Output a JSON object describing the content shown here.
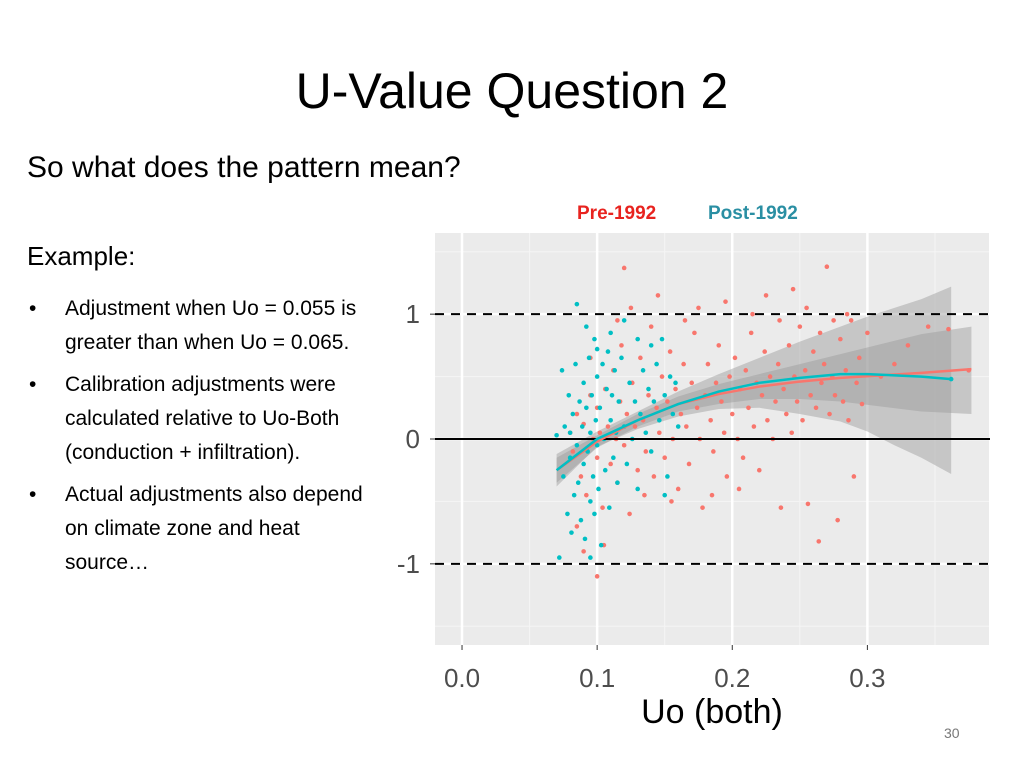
{
  "slide": {
    "title": "U-Value Question 2",
    "subtitle": "So what does the pattern mean?",
    "example_label": "Example:",
    "bullets": [
      "Adjustment when Uo = 0.055 is greater than when Uo = 0.065.",
      "Calibration adjustments were calculated relative to Uo-Both (conduction + infiltration).",
      "Actual adjustments also depend on climate zone and heat source…"
    ],
    "page_number": "30"
  },
  "chart_data": {
    "type": "scatter",
    "xlabel": "Uo (both)",
    "ylabel": "",
    "xlim": [
      -0.02,
      0.39
    ],
    "ylim": [
      -1.65,
      1.65
    ],
    "x_ticks": [
      0.0,
      0.1,
      0.2,
      0.3
    ],
    "x_tick_labels": [
      "0.0",
      "0.1",
      "0.2",
      "0.3"
    ],
    "y_ticks": [
      -1,
      0,
      1
    ],
    "y_tick_labels": [
      "-1",
      "0",
      "1"
    ],
    "grid": true,
    "reference_lines": [
      {
        "y": 1,
        "style": "dashed"
      },
      {
        "y": 0,
        "style": "solid"
      },
      {
        "y": -1,
        "style": "dashed"
      }
    ],
    "legend_position": "top",
    "series": [
      {
        "name": "Pre-1992",
        "color": "#F8766D",
        "points": [
          [
            0.08,
            0.05
          ],
          [
            0.082,
            -0.1
          ],
          [
            0.085,
            0.2
          ],
          [
            0.088,
            -0.3
          ],
          [
            0.09,
            0.12
          ],
          [
            0.092,
            -0.45
          ],
          [
            0.095,
            0.35
          ],
          [
            0.097,
            0.0
          ],
          [
            0.1,
            -0.15
          ],
          [
            0.1,
            0.25
          ],
          [
            0.102,
            0.05
          ],
          [
            0.104,
            -0.55
          ],
          [
            0.106,
            0.4
          ],
          [
            0.108,
            0.1
          ],
          [
            0.11,
            -0.2
          ],
          [
            0.112,
            0.55
          ],
          [
            0.114,
            0.0
          ],
          [
            0.115,
            -0.35
          ],
          [
            0.117,
            0.3
          ],
          [
            0.118,
            0.75
          ],
          [
            0.12,
            -0.05
          ],
          [
            0.122,
            0.2
          ],
          [
            0.124,
            -0.6
          ],
          [
            0.126,
            0.45
          ],
          [
            0.128,
            0.1
          ],
          [
            0.13,
            -0.25
          ],
          [
            0.132,
            0.65
          ],
          [
            0.134,
            0.15
          ],
          [
            0.136,
            -0.1
          ],
          [
            0.138,
            0.35
          ],
          [
            0.14,
            0.9
          ],
          [
            0.142,
            -0.3
          ],
          [
            0.144,
            0.25
          ],
          [
            0.146,
            0.05
          ],
          [
            0.148,
            0.5
          ],
          [
            0.15,
            -0.15
          ],
          [
            0.152,
            0.3
          ],
          [
            0.154,
            0.7
          ],
          [
            0.156,
            0.0
          ],
          [
            0.158,
            0.4
          ],
          [
            0.16,
            -0.4
          ],
          [
            0.162,
            0.2
          ],
          [
            0.164,
            0.6
          ],
          [
            0.166,
            0.1
          ],
          [
            0.168,
            -0.2
          ],
          [
            0.17,
            0.45
          ],
          [
            0.172,
            0.85
          ],
          [
            0.174,
            0.25
          ],
          [
            0.176,
            0.0
          ],
          [
            0.178,
            -0.55
          ],
          [
            0.18,
            0.35
          ],
          [
            0.182,
            0.6
          ],
          [
            0.184,
            0.15
          ],
          [
            0.186,
            -0.1
          ],
          [
            0.188,
            0.45
          ],
          [
            0.19,
            0.75
          ],
          [
            0.192,
            0.3
          ],
          [
            0.194,
            0.05
          ],
          [
            0.196,
            -0.3
          ],
          [
            0.198,
            0.5
          ],
          [
            0.2,
            0.2
          ],
          [
            0.202,
            0.65
          ],
          [
            0.204,
            0.0
          ],
          [
            0.206,
            0.4
          ],
          [
            0.208,
            -0.15
          ],
          [
            0.21,
            0.55
          ],
          [
            0.212,
            0.25
          ],
          [
            0.214,
            0.85
          ],
          [
            0.216,
            0.1
          ],
          [
            0.218,
            0.45
          ],
          [
            0.22,
            -0.25
          ],
          [
            0.222,
            0.35
          ],
          [
            0.224,
            0.7
          ],
          [
            0.226,
            0.15
          ],
          [
            0.228,
            0.5
          ],
          [
            0.23,
            0.0
          ],
          [
            0.232,
            0.3
          ],
          [
            0.234,
            0.6
          ],
          [
            0.236,
            -0.55
          ],
          [
            0.238,
            0.4
          ],
          [
            0.24,
            0.2
          ],
          [
            0.242,
            0.75
          ],
          [
            0.244,
            0.05
          ],
          [
            0.246,
            0.5
          ],
          [
            0.248,
            0.3
          ],
          [
            0.25,
            0.9
          ],
          [
            0.252,
            0.15
          ],
          [
            0.254,
            0.55
          ],
          [
            0.256,
            -0.52
          ],
          [
            0.258,
            0.35
          ],
          [
            0.26,
            0.7
          ],
          [
            0.262,
            0.25
          ],
          [
            0.264,
            -0.82
          ],
          [
            0.266,
            0.45
          ],
          [
            0.268,
            0.6
          ],
          [
            0.27,
            1.38
          ],
          [
            0.272,
            0.2
          ],
          [
            0.274,
            0.5
          ],
          [
            0.276,
            0.35
          ],
          [
            0.278,
            -0.65
          ],
          [
            0.28,
            0.8
          ],
          [
            0.282,
            0.3
          ],
          [
            0.284,
            0.55
          ],
          [
            0.286,
            0.15
          ],
          [
            0.288,
            0.95
          ],
          [
            0.29,
            -0.3
          ],
          [
            0.292,
            0.45
          ],
          [
            0.294,
            0.65
          ],
          [
            0.296,
            0.28
          ],
          [
            0.3,
            0.85
          ],
          [
            0.31,
            0.5
          ],
          [
            0.32,
            0.6
          ],
          [
            0.33,
            0.75
          ],
          [
            0.345,
            0.9
          ],
          [
            0.36,
            0.88
          ],
          [
            0.375,
            0.55
          ],
          [
            0.12,
            1.37
          ],
          [
            0.09,
            -0.9
          ],
          [
            0.1,
            -1.1
          ],
          [
            0.085,
            -0.7
          ],
          [
            0.105,
            -0.85
          ],
          [
            0.115,
            0.95
          ],
          [
            0.125,
            1.05
          ],
          [
            0.095,
            0.65
          ],
          [
            0.135,
            -0.45
          ],
          [
            0.145,
            1.15
          ],
          [
            0.155,
            -0.5
          ],
          [
            0.165,
            0.95
          ],
          [
            0.175,
            1.05
          ],
          [
            0.185,
            -0.45
          ],
          [
            0.195,
            1.1
          ],
          [
            0.205,
            -0.4
          ],
          [
            0.215,
            1.0
          ],
          [
            0.225,
            1.15
          ],
          [
            0.235,
            0.95
          ],
          [
            0.245,
            1.2
          ],
          [
            0.255,
            1.05
          ],
          [
            0.265,
            0.85
          ],
          [
            0.275,
            0.95
          ],
          [
            0.285,
            1.0
          ]
        ],
        "smooth": [
          [
            0.07,
            -0.25
          ],
          [
            0.1,
            -0.02
          ],
          [
            0.13,
            0.15
          ],
          [
            0.16,
            0.28
          ],
          [
            0.19,
            0.36
          ],
          [
            0.22,
            0.42
          ],
          [
            0.25,
            0.46
          ],
          [
            0.28,
            0.49
          ],
          [
            0.31,
            0.51
          ],
          [
            0.34,
            0.53
          ],
          [
            0.377,
            0.56
          ]
        ],
        "band": {
          "upper": [
            [
              0.07,
              -0.15
            ],
            [
              0.1,
              0.03
            ],
            [
              0.13,
              0.2
            ],
            [
              0.16,
              0.34
            ],
            [
              0.19,
              0.44
            ],
            [
              0.22,
              0.52
            ],
            [
              0.25,
              0.6
            ],
            [
              0.28,
              0.68
            ],
            [
              0.31,
              0.76
            ],
            [
              0.34,
              0.84
            ],
            [
              0.377,
              0.9
            ]
          ],
          "lower": [
            [
              0.07,
              -0.35
            ],
            [
              0.1,
              -0.07
            ],
            [
              0.13,
              0.1
            ],
            [
              0.16,
              0.22
            ],
            [
              0.19,
              0.28
            ],
            [
              0.22,
              0.32
            ],
            [
              0.25,
              0.32
            ],
            [
              0.28,
              0.3
            ],
            [
              0.31,
              0.26
            ],
            [
              0.34,
              0.22
            ],
            [
              0.377,
              0.2
            ]
          ]
        }
      },
      {
        "name": "Post-1992",
        "color": "#00BFC4",
        "points": [
          [
            0.07,
            0.03
          ],
          [
            0.072,
            -0.95
          ],
          [
            0.074,
            0.55
          ],
          [
            0.075,
            -0.3
          ],
          [
            0.076,
            0.1
          ],
          [
            0.078,
            -0.6
          ],
          [
            0.079,
            0.35
          ],
          [
            0.08,
            -0.15
          ],
          [
            0.08,
            0.05
          ],
          [
            0.081,
            -0.75
          ],
          [
            0.082,
            0.2
          ],
          [
            0.083,
            -0.45
          ],
          [
            0.084,
            0.6
          ],
          [
            0.085,
            -0.05
          ],
          [
            0.086,
            -0.35
          ],
          [
            0.087,
            0.3
          ],
          [
            0.088,
            -0.65
          ],
          [
            0.089,
            0.1
          ],
          [
            0.09,
            0.45
          ],
          [
            0.09,
            -0.2
          ],
          [
            0.091,
            -0.8
          ],
          [
            0.092,
            0.25
          ],
          [
            0.093,
            -0.1
          ],
          [
            0.094,
            0.65
          ],
          [
            0.095,
            -0.5
          ],
          [
            0.095,
            0.05
          ],
          [
            0.096,
            0.35
          ],
          [
            0.097,
            -0.3
          ],
          [
            0.098,
            0.8
          ],
          [
            0.098,
            -0.6
          ],
          [
            0.099,
            0.15
          ],
          [
            0.1,
            -0.05
          ],
          [
            0.1,
            0.5
          ],
          [
            0.101,
            -0.4
          ],
          [
            0.102,
            0.25
          ],
          [
            0.103,
            -0.85
          ],
          [
            0.104,
            0.6
          ],
          [
            0.105,
            0.0
          ],
          [
            0.106,
            -0.25
          ],
          [
            0.107,
            0.4
          ],
          [
            0.108,
            0.7
          ],
          [
            0.109,
            -0.55
          ],
          [
            0.11,
            0.15
          ],
          [
            0.111,
            0.35
          ],
          [
            0.112,
            -0.15
          ],
          [
            0.113,
            0.55
          ],
          [
            0.114,
            0.05
          ],
          [
            0.115,
            -0.35
          ],
          [
            0.116,
            0.3
          ],
          [
            0.118,
            0.65
          ],
          [
            0.12,
            0.1
          ],
          [
            0.122,
            -0.2
          ],
          [
            0.124,
            0.45
          ],
          [
            0.126,
            0.0
          ],
          [
            0.128,
            0.3
          ],
          [
            0.13,
            -0.4
          ],
          [
            0.132,
            0.2
          ],
          [
            0.134,
            0.55
          ],
          [
            0.136,
            0.05
          ],
          [
            0.138,
            0.4
          ],
          [
            0.14,
            -0.1
          ],
          [
            0.142,
            0.3
          ],
          [
            0.144,
            0.6
          ],
          [
            0.146,
            0.15
          ],
          [
            0.148,
            0.8
          ],
          [
            0.15,
            0.35
          ],
          [
            0.152,
            -0.3
          ],
          [
            0.154,
            0.5
          ],
          [
            0.156,
            0.2
          ],
          [
            0.158,
            0.45
          ],
          [
            0.085,
            1.08
          ],
          [
            0.095,
            -0.95
          ],
          [
            0.1,
            0.72
          ],
          [
            0.092,
            0.9
          ],
          [
            0.11,
            0.85
          ],
          [
            0.12,
            0.95
          ],
          [
            0.13,
            0.8
          ],
          [
            0.14,
            0.75
          ],
          [
            0.15,
            -0.45
          ],
          [
            0.16,
            0.1
          ],
          [
            0.362,
            0.48
          ]
        ],
        "smooth": [
          [
            0.07,
            -0.25
          ],
          [
            0.1,
            0.0
          ],
          [
            0.13,
            0.15
          ],
          [
            0.16,
            0.28
          ],
          [
            0.19,
            0.38
          ],
          [
            0.22,
            0.45
          ],
          [
            0.25,
            0.49
          ],
          [
            0.28,
            0.52
          ],
          [
            0.3,
            0.52
          ],
          [
            0.32,
            0.51
          ],
          [
            0.34,
            0.5
          ],
          [
            0.362,
            0.48
          ]
        ],
        "band": {
          "upper": [
            [
              0.07,
              -0.12
            ],
            [
              0.1,
              0.06
            ],
            [
              0.13,
              0.22
            ],
            [
              0.16,
              0.38
            ],
            [
              0.19,
              0.52
            ],
            [
              0.22,
              0.65
            ],
            [
              0.25,
              0.78
            ],
            [
              0.28,
              0.9
            ],
            [
              0.3,
              0.98
            ],
            [
              0.32,
              1.05
            ],
            [
              0.34,
              1.12
            ],
            [
              0.362,
              1.22
            ]
          ],
          "lower": [
            [
              0.07,
              -0.38
            ],
            [
              0.1,
              -0.06
            ],
            [
              0.13,
              0.08
            ],
            [
              0.16,
              0.18
            ],
            [
              0.19,
              0.24
            ],
            [
              0.22,
              0.25
            ],
            [
              0.25,
              0.2
            ],
            [
              0.28,
              0.14
            ],
            [
              0.3,
              0.06
            ],
            [
              0.32,
              -0.05
            ],
            [
              0.34,
              -0.15
            ],
            [
              0.362,
              -0.28
            ]
          ]
        }
      }
    ]
  }
}
